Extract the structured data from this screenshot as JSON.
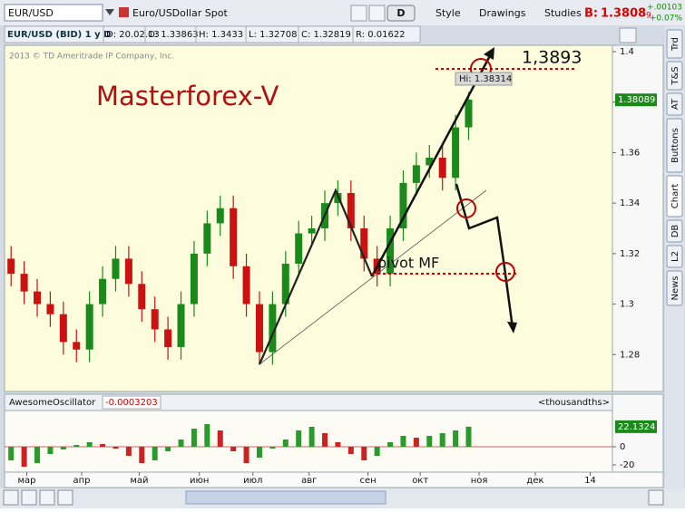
{
  "toolbar": {
    "symbol": "EUR/USD",
    "description": "Euro/USDollar Spot",
    "buttons": [
      "D",
      "Style",
      "Drawings",
      "Studies"
    ],
    "bid_label": "B:",
    "bid_price": "1.3808",
    "bid_pip": "9",
    "change": "+.00103",
    "change_pct": "+0.07%"
  },
  "info_row": [
    "EUR/USD (BID) 1 y D",
    "D: 20.02.13",
    "O: 1.33863",
    "H: 1.3433",
    "L: 1.32708",
    "C: 1.32819",
    "R: 0.01622"
  ],
  "sidebar_tabs": [
    "Trd",
    "T&S",
    "AT",
    "Buttons",
    "Chart",
    "DB",
    "L2",
    "News"
  ],
  "chart_data": [
    {
      "type": "candlestick",
      "copyright": "2013 © TD Ameritrade IP Company, Inc.",
      "last_price": "1.38089",
      "annotations": {
        "title": "Masterforex-V",
        "target": "1,3893",
        "pivot": "pivot MF",
        "high_label": "Hi: 1.38314"
      },
      "x": [
        0.5,
        1.5,
        2.5,
        3.5,
        4.5,
        5.5,
        6.5,
        7.5,
        8.5,
        9.5,
        10.5,
        11.5,
        12.5,
        13.5,
        14.5,
        15.5,
        16.5,
        17.5,
        18.5,
        19.5,
        20.5,
        21.5,
        22.5,
        23.5,
        24.5,
        25.5,
        26.5,
        27.5,
        28.5,
        29.5,
        30.5,
        31.5,
        32.5,
        33.5,
        34.5,
        35.5
      ],
      "open": [
        1.318,
        1.312,
        1.305,
        1.3,
        1.296,
        1.285,
        1.282,
        1.3,
        1.31,
        1.318,
        1.308,
        1.298,
        1.29,
        1.283,
        1.3,
        1.32,
        1.332,
        1.338,
        1.315,
        1.3,
        1.281,
        1.3,
        1.316,
        1.328,
        1.33,
        1.34,
        1.344,
        1.33,
        1.318,
        1.312,
        1.33,
        1.348,
        1.355,
        1.358,
        1.35,
        1.37
      ],
      "high": [
        1.323,
        1.317,
        1.31,
        1.305,
        1.301,
        1.29,
        1.305,
        1.315,
        1.323,
        1.323,
        1.313,
        1.303,
        1.295,
        1.305,
        1.325,
        1.337,
        1.343,
        1.343,
        1.32,
        1.305,
        1.305,
        1.321,
        1.333,
        1.335,
        1.345,
        1.349,
        1.349,
        1.335,
        1.323,
        1.335,
        1.353,
        1.36,
        1.363,
        1.363,
        1.375,
        1.384
      ],
      "low": [
        1.307,
        1.3,
        1.295,
        1.291,
        1.28,
        1.277,
        1.277,
        1.295,
        1.305,
        1.303,
        1.293,
        1.285,
        1.278,
        1.278,
        1.295,
        1.315,
        1.327,
        1.31,
        1.295,
        1.276,
        1.276,
        1.295,
        1.311,
        1.323,
        1.325,
        1.335,
        1.325,
        1.313,
        1.307,
        1.307,
        1.325,
        1.343,
        1.35,
        1.345,
        1.345,
        1.365
      ],
      "close": [
        1.312,
        1.305,
        1.3,
        1.296,
        1.285,
        1.282,
        1.3,
        1.31,
        1.318,
        1.308,
        1.298,
        1.29,
        1.283,
        1.3,
        1.32,
        1.332,
        1.338,
        1.315,
        1.3,
        1.281,
        1.3,
        1.316,
        1.328,
        1.33,
        1.34,
        1.344,
        1.33,
        1.318,
        1.312,
        1.33,
        1.348,
        1.355,
        1.358,
        1.35,
        1.37,
        1.381
      ],
      "up_color": "#1a8a1a",
      "down_color": "#cc1111",
      "xlim": [
        0,
        46.5
      ],
      "ylim": [
        1.2654,
        1.4025
      ],
      "yticks": [
        1.4,
        1.38,
        1.36,
        1.34,
        1.32,
        1.3,
        1.28
      ],
      "xticks": [
        {
          "value": 1.7,
          "label": "мар"
        },
        {
          "value": 5.9,
          "label": "апр"
        },
        {
          "value": 10.3,
          "label": "май"
        },
        {
          "value": 14.9,
          "label": "июн"
        },
        {
          "value": 19.0,
          "label": "июл"
        },
        {
          "value": 23.3,
          "label": "авг"
        },
        {
          "value": 27.8,
          "label": "сен"
        },
        {
          "value": 31.8,
          "label": "окт"
        },
        {
          "value": 36.3,
          "label": "ноя"
        },
        {
          "value": 40.6,
          "label": "дек"
        },
        {
          "value": 44.8,
          "label": "14"
        }
      ]
    },
    {
      "type": "bar",
      "name": "AwesomeOscillator",
      "current": "-0.0003203",
      "units": "<thousandths>",
      "last_label": "22.1324",
      "x": [
        0.5,
        1.5,
        2.5,
        3.5,
        4.5,
        5.5,
        6.5,
        7.5,
        8.5,
        9.5,
        10.5,
        11.5,
        12.5,
        13.5,
        14.5,
        15.5,
        16.5,
        17.5,
        18.5,
        19.5,
        20.5,
        21.5,
        22.5,
        23.5,
        24.5,
        25.5,
        26.5,
        27.5,
        28.5,
        29.5,
        30.5,
        31.5,
        32.5,
        33.5,
        34.5,
        35.5
      ],
      "values": [
        -15,
        -22,
        -18,
        -8,
        -3,
        2,
        5,
        3,
        -2,
        -10,
        -18,
        -15,
        -5,
        8,
        20,
        25,
        18,
        -5,
        -18,
        -12,
        -2,
        8,
        18,
        22,
        15,
        5,
        -8,
        -15,
        -10,
        5,
        12,
        10,
        12,
        15,
        18,
        22.1324
      ],
      "up_color": "#2a9a2a",
      "down_color": "#cc2222",
      "xlim": [
        0,
        46.5
      ],
      "ylim": [
        -27,
        38
      ],
      "yticks": [
        0,
        -20
      ]
    }
  ]
}
